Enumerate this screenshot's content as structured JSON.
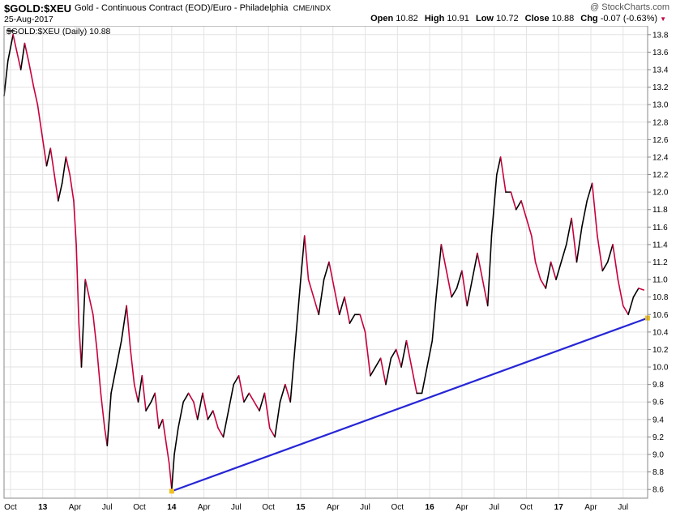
{
  "header": {
    "symbol": "$GOLD:$XEU",
    "description": "Gold - Continuous Contract (EOD)/Euro - Philadelphia",
    "exchange": "CME/INDX",
    "date": "25-Aug-2017",
    "brand": "@ StockCharts.com",
    "open_label": "Open",
    "open": "10.82",
    "high_label": "High",
    "high": "10.91",
    "low_label": "Low",
    "low": "10.72",
    "close_label": "Close",
    "close": "10.88",
    "chg_label": "Chg",
    "chg": "-0.07 (-0.63%)"
  },
  "colors": {
    "up": "#000000",
    "down": "#c8003c",
    "trendline": "#2626d6",
    "marker": "#f0c020",
    "grid": "#e3e3e3"
  },
  "chart_data": {
    "type": "line",
    "legend": "$GOLD:$XEU (Daily) 10.88",
    "ylim": [
      8.5,
      13.9
    ],
    "y_ticks": [
      8.6,
      8.8,
      9.0,
      9.2,
      9.4,
      9.6,
      9.8,
      10.0,
      10.2,
      10.4,
      10.6,
      10.8,
      11.0,
      11.2,
      11.4,
      11.6,
      11.8,
      12.0,
      12.2,
      12.4,
      12.6,
      12.8,
      13.0,
      13.2,
      13.4,
      13.6,
      13.8
    ],
    "x_range": [
      2012.7,
      2017.69
    ],
    "x_ticks": [
      {
        "label": "Oct",
        "x": 2012.75,
        "bold": false
      },
      {
        "label": "13",
        "x": 2013.0,
        "bold": true
      },
      {
        "label": "Apr",
        "x": 2013.25,
        "bold": false
      },
      {
        "label": "Jul",
        "x": 2013.5,
        "bold": false
      },
      {
        "label": "Oct",
        "x": 2013.75,
        "bold": false
      },
      {
        "label": "14",
        "x": 2014.0,
        "bold": true
      },
      {
        "label": "Apr",
        "x": 2014.25,
        "bold": false
      },
      {
        "label": "Jul",
        "x": 2014.5,
        "bold": false
      },
      {
        "label": "Oct",
        "x": 2014.75,
        "bold": false
      },
      {
        "label": "15",
        "x": 2015.0,
        "bold": true
      },
      {
        "label": "Apr",
        "x": 2015.25,
        "bold": false
      },
      {
        "label": "Jul",
        "x": 2015.5,
        "bold": false
      },
      {
        "label": "Oct",
        "x": 2015.75,
        "bold": false
      },
      {
        "label": "16",
        "x": 2016.0,
        "bold": true
      },
      {
        "label": "Apr",
        "x": 2016.25,
        "bold": false
      },
      {
        "label": "Jul",
        "x": 2016.5,
        "bold": false
      },
      {
        "label": "Oct",
        "x": 2016.75,
        "bold": false
      },
      {
        "label": "17",
        "x": 2017.0,
        "bold": true
      },
      {
        "label": "Apr",
        "x": 2017.25,
        "bold": false
      },
      {
        "label": "Jul",
        "x": 2017.5,
        "bold": false
      }
    ],
    "series": [
      {
        "values": [
          [
            2012.7,
            13.1
          ],
          [
            2012.73,
            13.5
          ],
          [
            2012.77,
            13.8
          ],
          [
            2012.8,
            13.6
          ],
          [
            2012.83,
            13.4
          ],
          [
            2012.86,
            13.7
          ],
          [
            2012.89,
            13.5
          ],
          [
            2012.93,
            13.2
          ],
          [
            2012.96,
            13.0
          ],
          [
            2013.0,
            12.6
          ],
          [
            2013.03,
            12.3
          ],
          [
            2013.06,
            12.5
          ],
          [
            2013.09,
            12.2
          ],
          [
            2013.12,
            11.9
          ],
          [
            2013.15,
            12.1
          ],
          [
            2013.18,
            12.4
          ],
          [
            2013.21,
            12.2
          ],
          [
            2013.24,
            11.9
          ],
          [
            2013.26,
            11.4
          ],
          [
            2013.28,
            10.5
          ],
          [
            2013.3,
            10.0
          ],
          [
            2013.33,
            11.0
          ],
          [
            2013.36,
            10.8
          ],
          [
            2013.39,
            10.6
          ],
          [
            2013.42,
            10.2
          ],
          [
            2013.45,
            9.7
          ],
          [
            2013.48,
            9.3
          ],
          [
            2013.5,
            9.1
          ],
          [
            2013.53,
            9.7
          ],
          [
            2013.57,
            10.0
          ],
          [
            2013.61,
            10.3
          ],
          [
            2013.65,
            10.7
          ],
          [
            2013.68,
            10.2
          ],
          [
            2013.71,
            9.8
          ],
          [
            2013.74,
            9.6
          ],
          [
            2013.77,
            9.9
          ],
          [
            2013.8,
            9.5
          ],
          [
            2013.84,
            9.6
          ],
          [
            2013.87,
            9.7
          ],
          [
            2013.9,
            9.3
          ],
          [
            2013.93,
            9.4
          ],
          [
            2013.96,
            9.1
          ],
          [
            2013.98,
            8.9
          ],
          [
            2014.0,
            8.6
          ],
          [
            2014.02,
            9.0
          ],
          [
            2014.05,
            9.3
          ],
          [
            2014.09,
            9.6
          ],
          [
            2014.13,
            9.7
          ],
          [
            2014.17,
            9.6
          ],
          [
            2014.2,
            9.4
          ],
          [
            2014.24,
            9.7
          ],
          [
            2014.28,
            9.4
          ],
          [
            2014.32,
            9.5
          ],
          [
            2014.36,
            9.3
          ],
          [
            2014.4,
            9.2
          ],
          [
            2014.44,
            9.5
          ],
          [
            2014.48,
            9.8
          ],
          [
            2014.52,
            9.9
          ],
          [
            2014.56,
            9.6
          ],
          [
            2014.6,
            9.7
          ],
          [
            2014.64,
            9.6
          ],
          [
            2014.68,
            9.5
          ],
          [
            2014.72,
            9.7
          ],
          [
            2014.76,
            9.3
          ],
          [
            2014.8,
            9.2
          ],
          [
            2014.84,
            9.6
          ],
          [
            2014.88,
            9.8
          ],
          [
            2014.92,
            9.6
          ],
          [
            2014.96,
            10.3
          ],
          [
            2015.0,
            11.0
          ],
          [
            2015.03,
            11.5
          ],
          [
            2015.06,
            11.0
          ],
          [
            2015.1,
            10.8
          ],
          [
            2015.14,
            10.6
          ],
          [
            2015.18,
            11.0
          ],
          [
            2015.22,
            11.2
          ],
          [
            2015.26,
            10.9
          ],
          [
            2015.3,
            10.6
          ],
          [
            2015.34,
            10.8
          ],
          [
            2015.38,
            10.5
          ],
          [
            2015.42,
            10.6
          ],
          [
            2015.46,
            10.6
          ],
          [
            2015.5,
            10.4
          ],
          [
            2015.54,
            9.9
          ],
          [
            2015.58,
            10.0
          ],
          [
            2015.62,
            10.1
          ],
          [
            2015.66,
            9.8
          ],
          [
            2015.7,
            10.1
          ],
          [
            2015.74,
            10.2
          ],
          [
            2015.78,
            10.0
          ],
          [
            2015.82,
            10.3
          ],
          [
            2015.86,
            10.0
          ],
          [
            2015.9,
            9.7
          ],
          [
            2015.94,
            9.7
          ],
          [
            2015.98,
            10.0
          ],
          [
            2016.02,
            10.3
          ],
          [
            2016.05,
            10.8
          ],
          [
            2016.09,
            11.4
          ],
          [
            2016.13,
            11.1
          ],
          [
            2016.17,
            10.8
          ],
          [
            2016.21,
            10.9
          ],
          [
            2016.25,
            11.1
          ],
          [
            2016.29,
            10.7
          ],
          [
            2016.33,
            11.0
          ],
          [
            2016.37,
            11.3
          ],
          [
            2016.41,
            11.0
          ],
          [
            2016.45,
            10.7
          ],
          [
            2016.48,
            11.5
          ],
          [
            2016.52,
            12.2
          ],
          [
            2016.55,
            12.4
          ],
          [
            2016.59,
            12.0
          ],
          [
            2016.63,
            12.0
          ],
          [
            2016.67,
            11.8
          ],
          [
            2016.71,
            11.9
          ],
          [
            2016.75,
            11.7
          ],
          [
            2016.79,
            11.5
          ],
          [
            2016.82,
            11.2
          ],
          [
            2016.86,
            11.0
          ],
          [
            2016.9,
            10.9
          ],
          [
            2016.94,
            11.2
          ],
          [
            2016.98,
            11.0
          ],
          [
            2017.02,
            11.2
          ],
          [
            2017.06,
            11.4
          ],
          [
            2017.1,
            11.7
          ],
          [
            2017.14,
            11.2
          ],
          [
            2017.18,
            11.6
          ],
          [
            2017.22,
            11.9
          ],
          [
            2017.26,
            12.1
          ],
          [
            2017.3,
            11.5
          ],
          [
            2017.34,
            11.1
          ],
          [
            2017.38,
            11.2
          ],
          [
            2017.42,
            11.4
          ],
          [
            2017.46,
            11.0
          ],
          [
            2017.5,
            10.7
          ],
          [
            2017.54,
            10.6
          ],
          [
            2017.58,
            10.8
          ],
          [
            2017.62,
            10.9
          ],
          [
            2017.66,
            10.88
          ]
        ]
      }
    ],
    "trendline": [
      [
        2014.0,
        8.58
      ],
      [
        2017.69,
        10.56
      ]
    ]
  }
}
